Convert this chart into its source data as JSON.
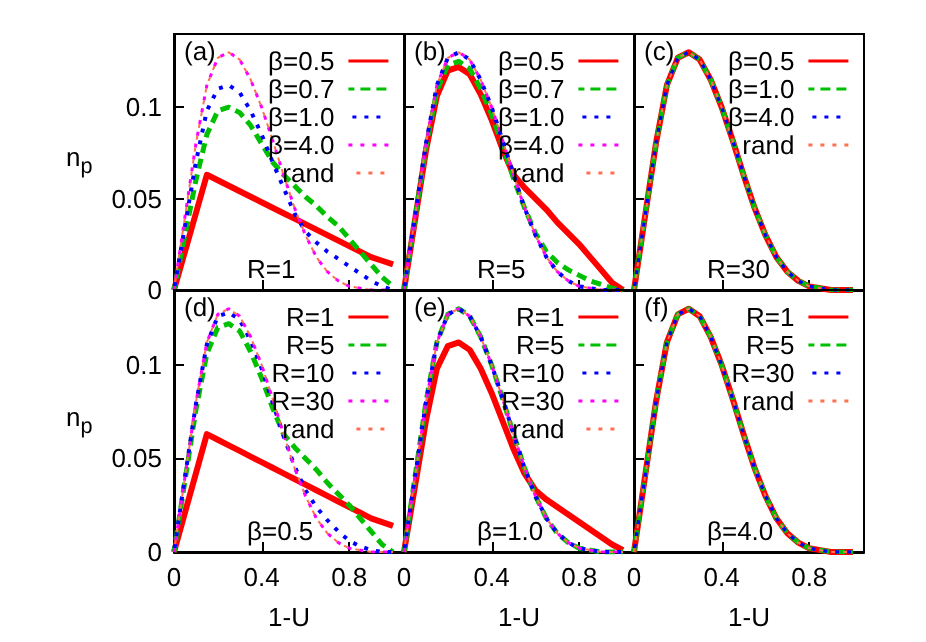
{
  "chart_data": [
    {
      "type": "line",
      "ylabel": "n$_{p}$",
      "annotations": [
        "(a)",
        "R=1"
      ],
      "x": [
        0,
        0.05,
        0.1,
        0.15,
        0.2,
        0.25,
        0.3,
        0.35,
        0.4,
        0.45,
        0.5,
        0.55,
        0.6,
        0.65,
        0.7,
        0.75,
        0.8,
        0.85,
        0.9,
        0.95,
        1.0
      ],
      "xlim": [
        0,
        1.05
      ],
      "ylim": [
        0,
        0.14
      ],
      "xticks": [
        0,
        0.4,
        0.8
      ],
      "yticks": [
        0,
        0.05,
        0.1
      ],
      "tick_labels": "y",
      "legend": "top right",
      "series": [
        {
          "name": "β=0.5",
          "color": "#ff0000",
          "line_style": "solid",
          "values": [
            0,
            0.021,
            0.042,
            0.063,
            0.06,
            0.057,
            0.054,
            0.051,
            0.048,
            0.045,
            0.042,
            0.039,
            0.036,
            0.033,
            0.03,
            0.027,
            0.024,
            0.021,
            0.018,
            0.016,
            0.014
          ]
        },
        {
          "name": "β=0.7",
          "color": "#00c000",
          "line_style": "dashed",
          "values": [
            0,
            0.03,
            0.06,
            0.085,
            0.098,
            0.1,
            0.097,
            0.09,
            0.08,
            0.07,
            0.063,
            0.057,
            0.051,
            0.046,
            0.04,
            0.035,
            0.028,
            0.021,
            0.014,
            0.007,
            0.002
          ]
        },
        {
          "name": "β=1.0",
          "color": "#0000ff",
          "line_style": "dotted",
          "values": [
            0,
            0.035,
            0.07,
            0.098,
            0.11,
            0.112,
            0.108,
            0.098,
            0.085,
            0.07,
            0.056,
            0.042,
            0.032,
            0.026,
            0.021,
            0.017,
            0.013,
            0.009,
            0.005,
            0.002,
            0
          ]
        },
        {
          "name": "β=4.0",
          "color": "#ff00ff",
          "line_style": "dotted",
          "values": [
            0,
            0.04,
            0.08,
            0.112,
            0.127,
            0.13,
            0.126,
            0.115,
            0.1,
            0.082,
            0.063,
            0.045,
            0.03,
            0.018,
            0.01,
            0.005,
            0.002,
            0.001,
            0,
            0,
            0
          ]
        },
        {
          "name": "rand",
          "color": "#ff7050",
          "line_style": "dotted",
          "values": [
            0,
            0.04,
            0.08,
            0.112,
            0.127,
            0.13,
            0.126,
            0.115,
            0.1,
            0.082,
            0.063,
            0.045,
            0.03,
            0.018,
            0.01,
            0.005,
            0.002,
            0.001,
            0,
            0,
            0
          ]
        }
      ]
    },
    {
      "type": "line",
      "annotations": [
        "(b)",
        "R=5"
      ],
      "x": [
        0,
        0.05,
        0.1,
        0.15,
        0.2,
        0.25,
        0.3,
        0.35,
        0.4,
        0.45,
        0.5,
        0.55,
        0.6,
        0.65,
        0.7,
        0.75,
        0.8,
        0.85,
        0.9,
        0.95,
        1.0
      ],
      "xlim": [
        0,
        1.05
      ],
      "ylim": [
        0,
        0.14
      ],
      "xticks": [
        0,
        0.4,
        0.8
      ],
      "yticks": [
        0,
        0.05,
        0.1
      ],
      "tick_labels": false,
      "legend": "top right",
      "series": [
        {
          "name": "β=0.5",
          "color": "#ff0000",
          "line_style": "solid",
          "values": [
            0,
            0.038,
            0.076,
            0.106,
            0.12,
            0.122,
            0.118,
            0.107,
            0.093,
            0.077,
            0.063,
            0.056,
            0.05,
            0.044,
            0.037,
            0.031,
            0.025,
            0.018,
            0.011,
            0.004,
            0
          ]
        },
        {
          "name": "β=0.7",
          "color": "#00c000",
          "line_style": "dashed",
          "values": [
            0,
            0.039,
            0.078,
            0.109,
            0.123,
            0.125,
            0.121,
            0.11,
            0.096,
            0.079,
            0.061,
            0.045,
            0.031,
            0.021,
            0.015,
            0.011,
            0.008,
            0.005,
            0.003,
            0.001,
            0
          ]
        },
        {
          "name": "β=1.0",
          "color": "#0000ff",
          "line_style": "dotted",
          "values": [
            0,
            0.04,
            0.08,
            0.112,
            0.127,
            0.13,
            0.126,
            0.115,
            0.1,
            0.082,
            0.063,
            0.045,
            0.03,
            0.018,
            0.01,
            0.005,
            0.002,
            0.001,
            0,
            0,
            0
          ]
        },
        {
          "name": "β=4.0",
          "color": "#ff00ff",
          "line_style": "dotted",
          "values": [
            0,
            0.04,
            0.08,
            0.112,
            0.127,
            0.13,
            0.126,
            0.115,
            0.1,
            0.082,
            0.063,
            0.045,
            0.03,
            0.018,
            0.01,
            0.005,
            0.002,
            0.001,
            0,
            0,
            0
          ]
        },
        {
          "name": "rand",
          "color": "#ff7050",
          "line_style": "dotted",
          "values": [
            0,
            0.04,
            0.08,
            0.112,
            0.127,
            0.13,
            0.126,
            0.115,
            0.1,
            0.082,
            0.063,
            0.045,
            0.03,
            0.018,
            0.01,
            0.005,
            0.002,
            0.001,
            0,
            0,
            0
          ]
        }
      ]
    },
    {
      "type": "line",
      "annotations": [
        "(c)",
        "R=30"
      ],
      "x": [
        0,
        0.05,
        0.1,
        0.15,
        0.2,
        0.25,
        0.3,
        0.35,
        0.4,
        0.45,
        0.5,
        0.55,
        0.6,
        0.65,
        0.7,
        0.75,
        0.8,
        0.85,
        0.9,
        0.95,
        1.0
      ],
      "xlim": [
        0,
        1.05
      ],
      "ylim": [
        0,
        0.14
      ],
      "xticks": [
        0,
        0.4,
        0.8
      ],
      "yticks": [
        0,
        0.05,
        0.1
      ],
      "tick_labels": false,
      "legend": "top right",
      "series": [
        {
          "name": "β=0.5",
          "color": "#ff0000",
          "line_style": "solid",
          "values": [
            0,
            0.04,
            0.08,
            0.112,
            0.127,
            0.13,
            0.126,
            0.115,
            0.1,
            0.082,
            0.063,
            0.045,
            0.03,
            0.018,
            0.01,
            0.005,
            0.002,
            0.001,
            0,
            0,
            0
          ]
        },
        {
          "name": "β=1.0",
          "color": "#00c000",
          "line_style": "dashed",
          "values": [
            0,
            0.04,
            0.08,
            0.112,
            0.127,
            0.13,
            0.126,
            0.115,
            0.1,
            0.082,
            0.063,
            0.045,
            0.03,
            0.018,
            0.01,
            0.005,
            0.002,
            0.001,
            0,
            0,
            0
          ]
        },
        {
          "name": "β=4.0",
          "color": "#0000ff",
          "line_style": "dotted",
          "values": [
            0,
            0.04,
            0.08,
            0.112,
            0.127,
            0.13,
            0.126,
            0.115,
            0.1,
            0.082,
            0.063,
            0.045,
            0.03,
            0.018,
            0.01,
            0.005,
            0.002,
            0.001,
            0,
            0,
            0
          ]
        },
        {
          "name": "rand",
          "color": "#ff7050",
          "line_style": "dotted",
          "values": [
            0,
            0.04,
            0.08,
            0.112,
            0.127,
            0.13,
            0.126,
            0.115,
            0.1,
            0.082,
            0.063,
            0.045,
            0.03,
            0.018,
            0.01,
            0.005,
            0.002,
            0.001,
            0,
            0,
            0
          ]
        }
      ]
    },
    {
      "type": "line",
      "ylabel": "n$_{p}$",
      "xlabel": "1-U",
      "annotations": [
        "(d)",
        "β=0.5"
      ],
      "x": [
        0,
        0.05,
        0.1,
        0.15,
        0.2,
        0.25,
        0.3,
        0.35,
        0.4,
        0.45,
        0.5,
        0.55,
        0.6,
        0.65,
        0.7,
        0.75,
        0.8,
        0.85,
        0.9,
        0.95,
        1.0
      ],
      "xlim": [
        0,
        1.05
      ],
      "ylim": [
        0,
        0.14
      ],
      "xticks": [
        0,
        0.4,
        0.8
      ],
      "yticks": [
        0,
        0.05,
        0.1
      ],
      "legend": "top right",
      "series": [
        {
          "name": "R=1",
          "color": "#ff0000",
          "line_style": "solid",
          "values": [
            0,
            0.021,
            0.042,
            0.063,
            0.06,
            0.057,
            0.054,
            0.051,
            0.048,
            0.045,
            0.042,
            0.039,
            0.036,
            0.033,
            0.03,
            0.027,
            0.024,
            0.021,
            0.018,
            0.016,
            0.014
          ]
        },
        {
          "name": "R=5",
          "color": "#00c000",
          "line_style": "dashed",
          "values": [
            0,
            0.038,
            0.076,
            0.106,
            0.12,
            0.122,
            0.118,
            0.107,
            0.093,
            0.077,
            0.063,
            0.056,
            0.05,
            0.044,
            0.037,
            0.031,
            0.025,
            0.018,
            0.011,
            0.004,
            0
          ]
        },
        {
          "name": "R=10",
          "color": "#0000ff",
          "line_style": "dotted",
          "values": [
            0,
            0.04,
            0.079,
            0.111,
            0.126,
            0.128,
            0.124,
            0.113,
            0.098,
            0.08,
            0.062,
            0.046,
            0.033,
            0.024,
            0.017,
            0.011,
            0.006,
            0.003,
            0.001,
            0,
            0
          ]
        },
        {
          "name": "R=30",
          "color": "#ff00ff",
          "line_style": "dotted",
          "values": [
            0,
            0.04,
            0.08,
            0.112,
            0.127,
            0.13,
            0.126,
            0.115,
            0.1,
            0.082,
            0.063,
            0.045,
            0.03,
            0.018,
            0.01,
            0.005,
            0.002,
            0.001,
            0,
            0,
            0
          ]
        },
        {
          "name": "rand",
          "color": "#ff7050",
          "line_style": "dotted",
          "values": [
            0,
            0.04,
            0.08,
            0.112,
            0.127,
            0.13,
            0.126,
            0.115,
            0.1,
            0.082,
            0.063,
            0.045,
            0.03,
            0.018,
            0.01,
            0.005,
            0.002,
            0.001,
            0,
            0,
            0
          ]
        }
      ]
    },
    {
      "type": "line",
      "xlabel": "1-U",
      "annotations": [
        "(e)",
        "β=1.0"
      ],
      "x": [
        0,
        0.05,
        0.1,
        0.15,
        0.2,
        0.25,
        0.3,
        0.35,
        0.4,
        0.45,
        0.5,
        0.55,
        0.6,
        0.65,
        0.7,
        0.75,
        0.8,
        0.85,
        0.9,
        0.95,
        1.0
      ],
      "xlim": [
        0,
        1.05
      ],
      "ylim": [
        0,
        0.14
      ],
      "xticks": [
        0,
        0.4,
        0.8
      ],
      "yticks": [
        0,
        0.05,
        0.1
      ],
      "tick_labels": "x",
      "legend": "top right",
      "series": [
        {
          "name": "R=1",
          "color": "#ff0000",
          "line_style": "solid",
          "values": [
            0,
            0.035,
            0.07,
            0.098,
            0.11,
            0.112,
            0.108,
            0.098,
            0.085,
            0.07,
            0.055,
            0.042,
            0.033,
            0.028,
            0.024,
            0.02,
            0.016,
            0.012,
            0.008,
            0.004,
            0.001
          ]
        },
        {
          "name": "R=5",
          "color": "#00c000",
          "line_style": "dashed",
          "values": [
            0,
            0.04,
            0.08,
            0.112,
            0.127,
            0.13,
            0.126,
            0.115,
            0.1,
            0.082,
            0.063,
            0.045,
            0.03,
            0.018,
            0.01,
            0.005,
            0.002,
            0.001,
            0,
            0,
            0
          ]
        },
        {
          "name": "R=10",
          "color": "#0000ff",
          "line_style": "dotted",
          "values": [
            0,
            0.04,
            0.08,
            0.112,
            0.127,
            0.13,
            0.126,
            0.115,
            0.1,
            0.082,
            0.063,
            0.045,
            0.03,
            0.018,
            0.01,
            0.005,
            0.002,
            0.001,
            0,
            0,
            0
          ]
        },
        {
          "name": "R=30",
          "color": "#ff00ff",
          "line_style": "dotted",
          "values": [
            0,
            0.04,
            0.08,
            0.112,
            0.127,
            0.13,
            0.126,
            0.115,
            0.1,
            0.082,
            0.063,
            0.045,
            0.03,
            0.018,
            0.01,
            0.005,
            0.002,
            0.001,
            0,
            0,
            0
          ]
        },
        {
          "name": "rand",
          "color": "#ff7050",
          "line_style": "dotted",
          "values": [
            0,
            0.04,
            0.08,
            0.112,
            0.127,
            0.13,
            0.126,
            0.115,
            0.1,
            0.082,
            0.063,
            0.045,
            0.03,
            0.018,
            0.01,
            0.005,
            0.002,
            0.001,
            0,
            0,
            0
          ]
        }
      ]
    },
    {
      "type": "line",
      "xlabel": "1-U",
      "annotations": [
        "(f)",
        "β=4.0"
      ],
      "x": [
        0,
        0.05,
        0.1,
        0.15,
        0.2,
        0.25,
        0.3,
        0.35,
        0.4,
        0.45,
        0.5,
        0.55,
        0.6,
        0.65,
        0.7,
        0.75,
        0.8,
        0.85,
        0.9,
        0.95,
        1.0
      ],
      "xlim": [
        0,
        1.05
      ],
      "ylim": [
        0,
        0.14
      ],
      "xticks": [
        0,
        0.4,
        0.8
      ],
      "yticks": [
        0,
        0.05,
        0.1
      ],
      "tick_labels": "x",
      "legend": "top right",
      "series": [
        {
          "name": "R=1",
          "color": "#ff0000",
          "line_style": "solid",
          "values": [
            0,
            0.04,
            0.08,
            0.112,
            0.127,
            0.13,
            0.126,
            0.115,
            0.1,
            0.082,
            0.063,
            0.045,
            0.03,
            0.018,
            0.01,
            0.005,
            0.002,
            0.001,
            0,
            0,
            0
          ]
        },
        {
          "name": "R=5",
          "color": "#00c000",
          "line_style": "dashed",
          "values": [
            0,
            0.04,
            0.08,
            0.112,
            0.127,
            0.13,
            0.126,
            0.115,
            0.1,
            0.082,
            0.063,
            0.045,
            0.03,
            0.018,
            0.01,
            0.005,
            0.002,
            0.001,
            0,
            0,
            0
          ]
        },
        {
          "name": "R=30",
          "color": "#0000ff",
          "line_style": "dotted",
          "values": [
            0,
            0.04,
            0.08,
            0.112,
            0.127,
            0.13,
            0.126,
            0.115,
            0.1,
            0.082,
            0.063,
            0.045,
            0.03,
            0.018,
            0.01,
            0.005,
            0.002,
            0.001,
            0,
            0,
            0
          ]
        },
        {
          "name": "rand",
          "color": "#ff7050",
          "line_style": "dotted",
          "values": [
            0,
            0.04,
            0.08,
            0.112,
            0.127,
            0.13,
            0.126,
            0.115,
            0.1,
            0.082,
            0.063,
            0.045,
            0.03,
            0.018,
            0.01,
            0.005,
            0.002,
            0.001,
            0,
            0,
            0
          ]
        }
      ]
    }
  ]
}
